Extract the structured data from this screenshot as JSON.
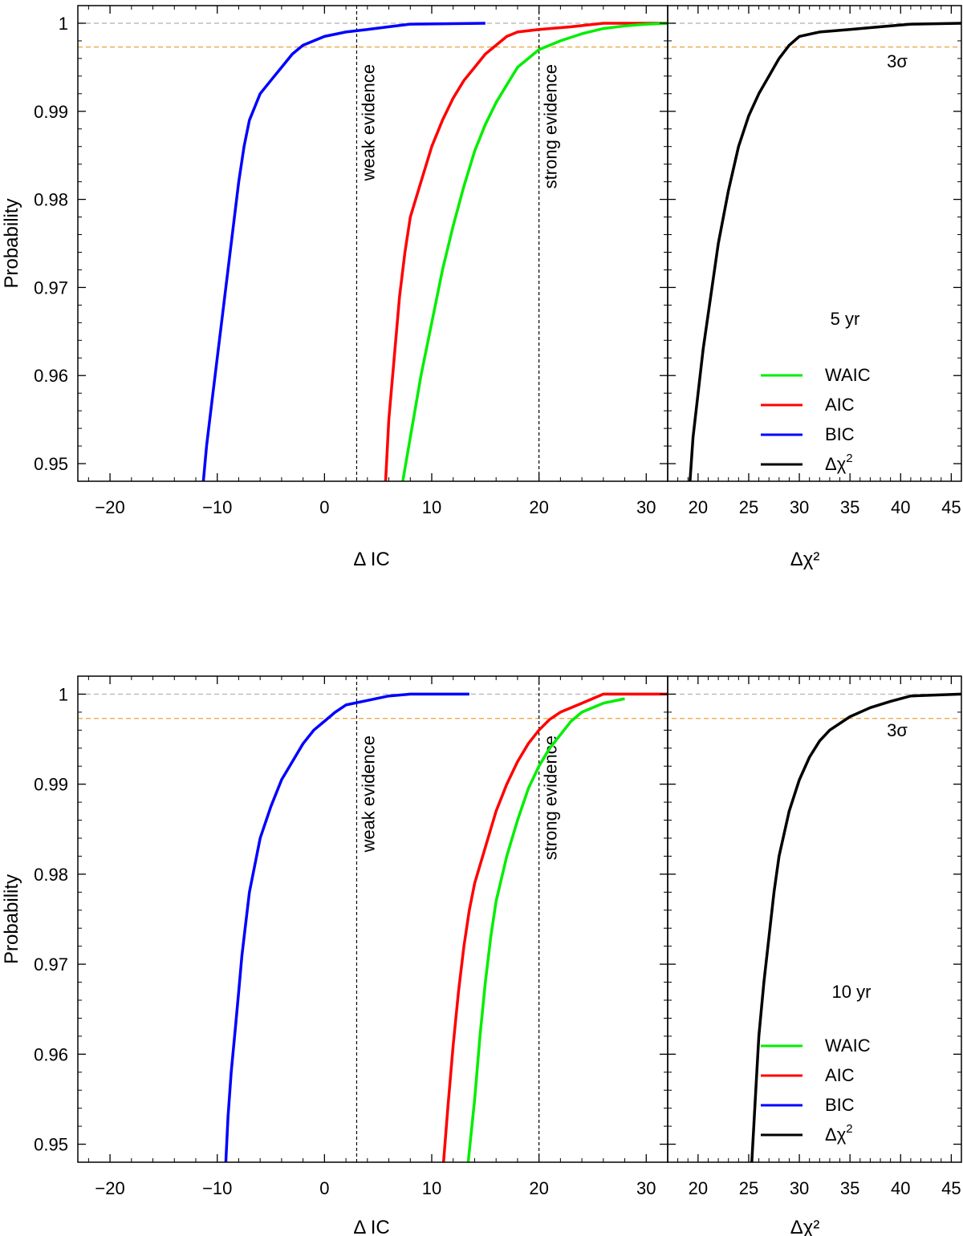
{
  "chart_data": [
    {
      "name": "top",
      "type": "line",
      "ylabel": "Probability",
      "ylim": [
        0.948,
        1.002
      ],
      "yticks": [
        0.95,
        0.96,
        0.97,
        0.98,
        0.99,
        1
      ],
      "ytick_labels": [
        "0.95",
        "0.96",
        "0.97",
        "0.98",
        "0.99",
        "1"
      ],
      "guides": [
        {
          "value": 1.0,
          "color": "#b0b0b0"
        },
        {
          "value": 0.9973,
          "color": "#e8a33a"
        }
      ],
      "sigma_label": "3σ",
      "period_label": "5 yr",
      "left": {
        "xlabel": "Δ IC",
        "xlim": [
          -23,
          32
        ],
        "xticks": [
          -20,
          -10,
          0,
          10,
          20,
          30
        ],
        "xtick_labels": [
          "−20",
          "−10",
          "0",
          "10",
          "20",
          "30"
        ],
        "vlines": [
          {
            "x": 3,
            "label": "weak evidence"
          },
          {
            "x": 20,
            "label": "strong evidence"
          }
        ],
        "series": [
          {
            "name": "BIC",
            "color": "#0000ff",
            "x": [
              -11.3,
              -11,
              -10.5,
              -10,
              -9.5,
              -9,
              -8.5,
              -8,
              -7.5,
              -7,
              -6.5,
              -6,
              -5,
              -4,
              -3,
              -2,
              -1,
              0,
              2,
              4,
              6,
              8,
              15
            ],
            "y": [
              0.948,
              0.952,
              0.957,
              0.962,
              0.967,
              0.972,
              0.977,
              0.982,
              0.986,
              0.989,
              0.9905,
              0.992,
              0.9935,
              0.995,
              0.9965,
              0.9975,
              0.998,
              0.9985,
              0.999,
              0.9993,
              0.9996,
              0.9999,
              1.0
            ]
          },
          {
            "name": "AIC",
            "color": "#ff0000",
            "x": [
              5.7,
              6,
              6.5,
              7,
              7.5,
              8,
              9,
              10,
              11,
              12,
              13,
              14,
              15,
              16,
              17,
              18,
              20,
              23,
              26,
              32
            ],
            "y": [
              0.948,
              0.955,
              0.962,
              0.969,
              0.974,
              0.978,
              0.982,
              0.986,
              0.989,
              0.9915,
              0.9935,
              0.995,
              0.9965,
              0.9975,
              0.9985,
              0.999,
              0.9993,
              0.9996,
              1.0,
              1.0
            ]
          },
          {
            "name": "WAIC",
            "color": "#00ee00",
            "x": [
              7.3,
              8,
              9,
              10,
              11,
              12,
              13,
              14,
              15,
              16,
              17,
              18,
              19,
              20,
              22,
              24,
              26,
              28,
              30,
              32
            ],
            "y": [
              0.948,
              0.953,
              0.96,
              0.966,
              0.972,
              0.977,
              0.9815,
              0.9855,
              0.9885,
              0.991,
              0.993,
              0.995,
              0.996,
              0.997,
              0.998,
              0.9988,
              0.9994,
              0.9997,
              0.9999,
              1.0
            ]
          }
        ]
      },
      "right": {
        "xlabel": "Δχ²",
        "xlim": [
          17,
          46
        ],
        "xticks": [
          20,
          25,
          30,
          35,
          40,
          45
        ],
        "xtick_labels": [
          "20",
          "25",
          "30",
          "35",
          "40",
          "45"
        ],
        "series": [
          {
            "name": "Δχ²",
            "color": "#000000",
            "x": [
              19.2,
              19.5,
              20,
              20.5,
              21,
              21.5,
              22,
              23,
              24,
              25,
              26,
              27,
              28,
              29,
              30,
              32,
              35,
              38,
              41,
              46
            ],
            "y": [
              0.948,
              0.953,
              0.958,
              0.963,
              0.967,
              0.971,
              0.975,
              0.981,
              0.986,
              0.9895,
              0.992,
              0.994,
              0.996,
              0.9975,
              0.9985,
              0.999,
              0.9993,
              0.9996,
              0.9999,
              1.0
            ]
          }
        ]
      },
      "legend": [
        {
          "label": "WAIC",
          "color": "#00ee00"
        },
        {
          "label": "AIC",
          "color": "#ff0000"
        },
        {
          "label": "BIC",
          "color": "#0000ff"
        },
        {
          "label": "Δχ",
          "sup": "2",
          "color": "#000000"
        }
      ]
    },
    {
      "name": "bottom",
      "type": "line",
      "ylabel": "Probability",
      "ylim": [
        0.948,
        1.002
      ],
      "yticks": [
        0.95,
        0.96,
        0.97,
        0.98,
        0.99,
        1
      ],
      "ytick_labels": [
        "0.95",
        "0.96",
        "0.97",
        "0.98",
        "0.99",
        "1"
      ],
      "guides": [
        {
          "value": 1.0,
          "color": "#b0b0b0"
        },
        {
          "value": 0.9973,
          "color": "#e8a33a"
        }
      ],
      "sigma_label": "3σ",
      "period_label": "10 yr",
      "left": {
        "xlabel": "Δ IC",
        "xlim": [
          -23,
          32
        ],
        "xticks": [
          -20,
          -10,
          0,
          10,
          20,
          30
        ],
        "xtick_labels": [
          "−20",
          "−10",
          "0",
          "10",
          "20",
          "30"
        ],
        "vlines": [
          {
            "x": 3,
            "label": "weak evidence"
          },
          {
            "x": 20,
            "label": "strong evidence"
          }
        ],
        "series": [
          {
            "name": "BIC",
            "color": "#0000ff",
            "x": [
              -9.2,
              -9,
              -8.7,
              -8.3,
              -8,
              -7.7,
              -7.3,
              -7,
              -6.5,
              -6,
              -5,
              -4,
              -3,
              -2,
              -1,
              0,
              1,
              2,
              4,
              6,
              8,
              13.5
            ],
            "y": [
              0.948,
              0.953,
              0.958,
              0.963,
              0.967,
              0.971,
              0.975,
              0.978,
              0.981,
              0.984,
              0.9875,
              0.9905,
              0.9925,
              0.9945,
              0.996,
              0.997,
              0.998,
              0.9988,
              0.9993,
              0.9998,
              1.0,
              1.0
            ]
          },
          {
            "name": "AIC",
            "color": "#ff0000",
            "x": [
              11.1,
              11.5,
              12,
              12.5,
              13,
              13.5,
              14,
              15,
              16,
              17,
              18,
              19,
              20,
              21,
              22,
              24,
              26,
              32
            ],
            "y": [
              0.948,
              0.954,
              0.961,
              0.967,
              0.972,
              0.976,
              0.979,
              0.983,
              0.987,
              0.99,
              0.9925,
              0.9945,
              0.996,
              0.9972,
              0.998,
              0.999,
              1.0,
              1.0
            ]
          },
          {
            "name": "WAIC",
            "color": "#00ee00",
            "x": [
              13.4,
              14,
              14.5,
              15,
              15.5,
              16,
              17,
              18,
              19,
              20,
              21,
              22,
              23,
              24,
              26,
              28
            ],
            "y": [
              0.948,
              0.955,
              0.962,
              0.968,
              0.973,
              0.977,
              0.982,
              0.986,
              0.9895,
              0.992,
              0.994,
              0.9955,
              0.997,
              0.998,
              0.999,
              0.9995
            ]
          }
        ]
      },
      "right": {
        "xlabel": "Δχ²",
        "xlim": [
          17,
          46
        ],
        "xticks": [
          20,
          25,
          30,
          35,
          40,
          45
        ],
        "xtick_labels": [
          "20",
          "25",
          "30",
          "35",
          "40",
          "45"
        ],
        "series": [
          {
            "name": "Δχ²",
            "color": "#000000",
            "x": [
              25.3,
              25.7,
              26,
              26.5,
              27,
              27.5,
              28,
              29,
              30,
              31,
              32,
              33,
              35,
              37,
              39,
              41,
              46
            ],
            "y": [
              0.948,
              0.956,
              0.962,
              0.968,
              0.973,
              0.978,
              0.982,
              0.987,
              0.9905,
              0.993,
              0.9948,
              0.996,
              0.9975,
              0.9985,
              0.9992,
              0.9998,
              1.0
            ]
          }
        ]
      },
      "legend": [
        {
          "label": "WAIC",
          "color": "#00ee00"
        },
        {
          "label": "AIC",
          "color": "#ff0000"
        },
        {
          "label": "BIC",
          "color": "#0000ff"
        },
        {
          "label": "Δχ",
          "sup": "2",
          "color": "#000000"
        }
      ]
    }
  ]
}
